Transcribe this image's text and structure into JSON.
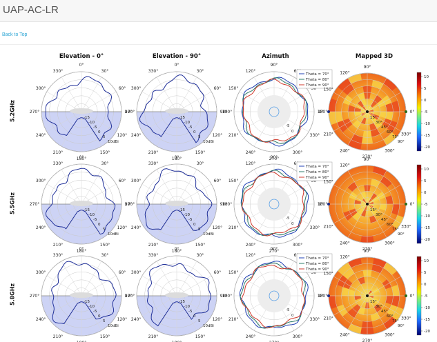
{
  "app": {
    "title": "UAP-AC-LR",
    "back_link": "Back to Top"
  },
  "columns": [
    "Elevation - 0°",
    "Elevation - 90°",
    "Azimuth",
    "Mapped 3D"
  ],
  "rows": [
    "5.2GHz",
    "5.5GHz",
    "5.8GHz"
  ],
  "polar": {
    "angle_labels_elev": [
      "0°",
      "30°",
      "60°",
      "90°",
      "120°",
      "150°",
      "180°",
      "210°",
      "240°",
      "270°",
      "300°",
      "330°"
    ],
    "angle_labels_az": [
      "90°",
      "60°",
      "30°",
      "0°",
      "330°",
      "300°",
      "270°",
      "240°",
      "210°",
      "180°",
      "150°",
      "120°"
    ],
    "radial_labels": [
      "-15",
      "-10",
      "-5",
      "0",
      "5",
      "10dBi"
    ],
    "az_radial_labels": [
      "-5",
      "0"
    ],
    "fill_color": "#cdd3f5",
    "trace_color": "#1f2f99"
  },
  "legend": {
    "entries": [
      {
        "label": "Theta = 70°",
        "color": "#1f3fb4"
      },
      {
        "label": "Theta = 80°",
        "color": "#2e7d6b"
      },
      {
        "label": "Theta = 90°",
        "color": "#d03a2c"
      }
    ]
  },
  "mapped3d": {
    "angle_labels": [
      "90°",
      "120°",
      "150°",
      "180°",
      "210°",
      "240°",
      "270°",
      "300°",
      "330°",
      "0°"
    ],
    "radial_labels": [
      "15°",
      "30°",
      "45°",
      "60°",
      "75°",
      "90°"
    ],
    "colorbar_ticks": [
      "10",
      "5",
      "0",
      "-5",
      "-10",
      "-15",
      "-20"
    ]
  }
}
